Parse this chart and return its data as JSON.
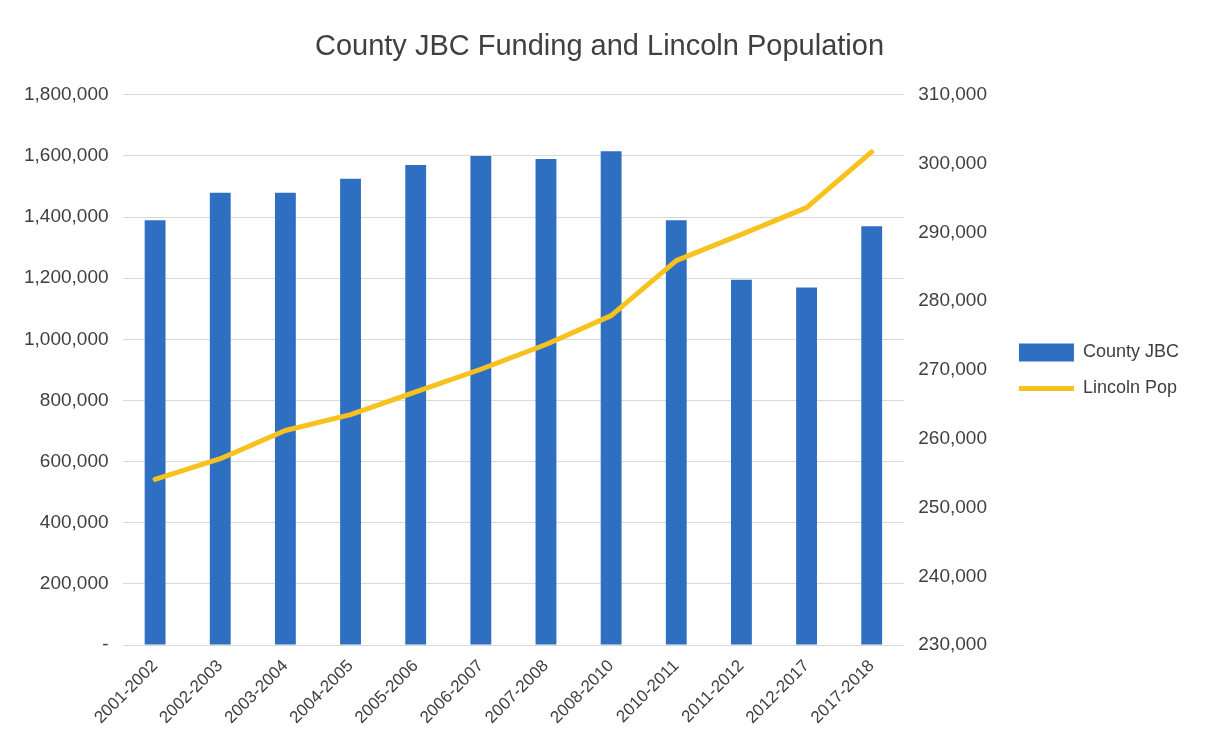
{
  "chart_data": {
    "type": "bar",
    "title": "County JBC Funding and Lincoln Population",
    "categories": [
      "2001-2002",
      "2002-2003",
      "2003-2004",
      "2004-2005",
      "2005-2006",
      "2006-2007",
      "2007-2008",
      "2008-2010",
      "2010-2011",
      "2011-2012",
      "2012-2017",
      "2017-2018"
    ],
    "series": [
      {
        "name": "County JBC",
        "color": "#2e6fc2",
        "values": [
          1390000,
          1480000,
          1480000,
          1525000,
          1570000,
          1600000,
          1590000,
          1615000,
          1390000,
          1195000,
          1170000,
          1370000
        ]
      },
      {
        "name": "Lincoln Pop",
        "type": "line",
        "axis": "y2",
        "color": "#f7c21e",
        "values": [
          254100,
          257100,
          261200,
          263500,
          266800,
          270100,
          273700,
          277900,
          285900,
          289700,
          293600,
          301700
        ]
      }
    ],
    "ylim": [
      0,
      1800000
    ],
    "yticks": [
      {
        "value": 0,
        "label": "-"
      },
      {
        "value": 200000,
        "label": "200,000"
      },
      {
        "value": 400000,
        "label": "400,000"
      },
      {
        "value": 600000,
        "label": "600,000"
      },
      {
        "value": 800000,
        "label": "800,000"
      },
      {
        "value": 1000000,
        "label": "1,000,000"
      },
      {
        "value": 1200000,
        "label": "1,200,000"
      },
      {
        "value": 1400000,
        "label": "1,400,000"
      },
      {
        "value": 1600000,
        "label": "1,600,000"
      },
      {
        "value": 1800000,
        "label": "1,800,000"
      }
    ],
    "y2lim": [
      230000,
      310000
    ],
    "y2ticks": [
      {
        "value": 230000,
        "label": "230,000"
      },
      {
        "value": 240000,
        "label": "240,000"
      },
      {
        "value": 250000,
        "label": "250,000"
      },
      {
        "value": 260000,
        "label": "260,000"
      },
      {
        "value": 270000,
        "label": "270,000"
      },
      {
        "value": 280000,
        "label": "280,000"
      },
      {
        "value": 290000,
        "label": "290,000"
      },
      {
        "value": 300000,
        "label": "300,000"
      },
      {
        "value": 310000,
        "label": "310,000"
      }
    ],
    "grid": "y",
    "legend": "right",
    "marker": "none",
    "line_style": "solid"
  }
}
